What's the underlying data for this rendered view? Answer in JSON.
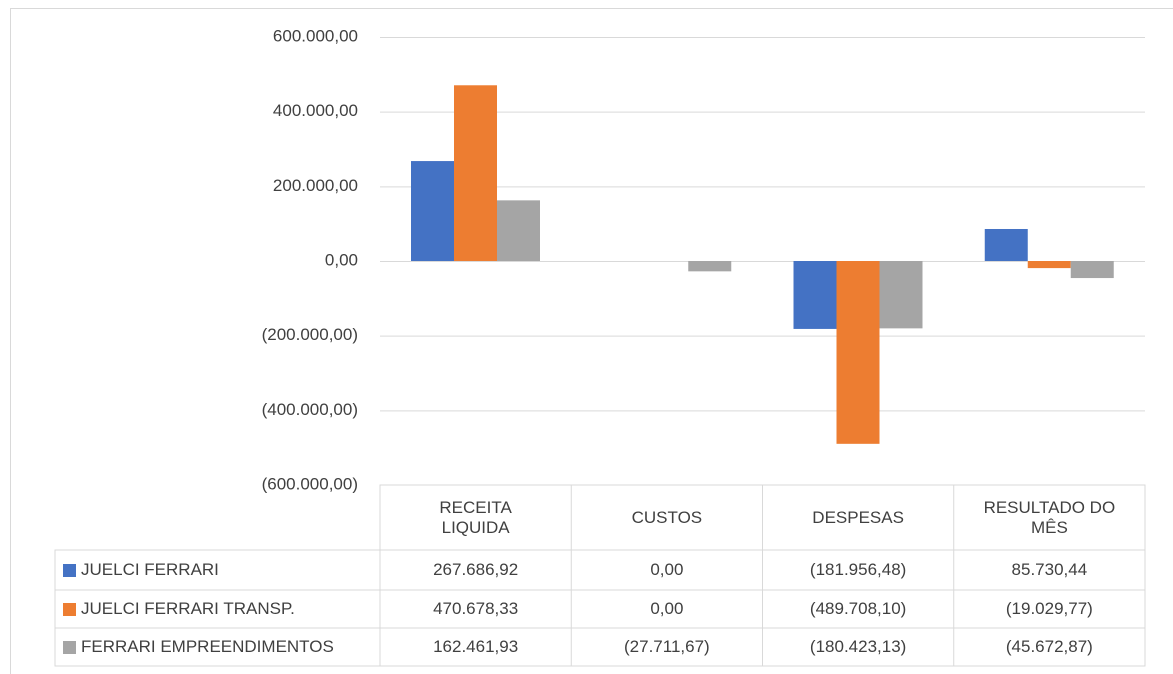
{
  "chart_data": {
    "type": "bar",
    "categories": [
      "RECEITA LIQUIDA",
      "CUSTOS",
      "DESPESAS",
      "RESULTADO DO MÊS"
    ],
    "series": [
      {
        "name": "JUELCI FERRARI",
        "color": "#4472c4",
        "values": [
          267686.92,
          0,
          -181956.48,
          85730.44
        ],
        "value_labels": [
          "267.686,92",
          "0,00",
          "(181.956,48)",
          "85.730,44"
        ]
      },
      {
        "name": "JUELCI FERRARI TRANSP.",
        "color": "#ed7d31",
        "values": [
          470678.33,
          0,
          -489708.1,
          -19029.77
        ],
        "value_labels": [
          "470.678,33",
          "0,00",
          "(489.708,10)",
          "(19.029,77)"
        ]
      },
      {
        "name": "FERRARI EMPREENDIMENTOS",
        "color": "#a5a5a5",
        "values": [
          162461.93,
          -27711.67,
          -180423.13,
          -45672.87
        ],
        "value_labels": [
          "162.461,93",
          "(27.711,67)",
          "(180.423,13)",
          "(45.672,87)"
        ]
      }
    ],
    "ylim": [
      -600000,
      600000
    ],
    "yticks": [
      {
        "value": -600000,
        "label": "(600.000,00)"
      },
      {
        "value": -400000,
        "label": "(400.000,00)"
      },
      {
        "value": -200000,
        "label": "(200.000,00)"
      },
      {
        "value": 0,
        "label": "0,00"
      },
      {
        "value": 200000,
        "label": "200.000,00"
      },
      {
        "value": 400000,
        "label": "400.000,00"
      },
      {
        "value": 600000,
        "label": "600.000,00"
      }
    ],
    "grid": true
  }
}
